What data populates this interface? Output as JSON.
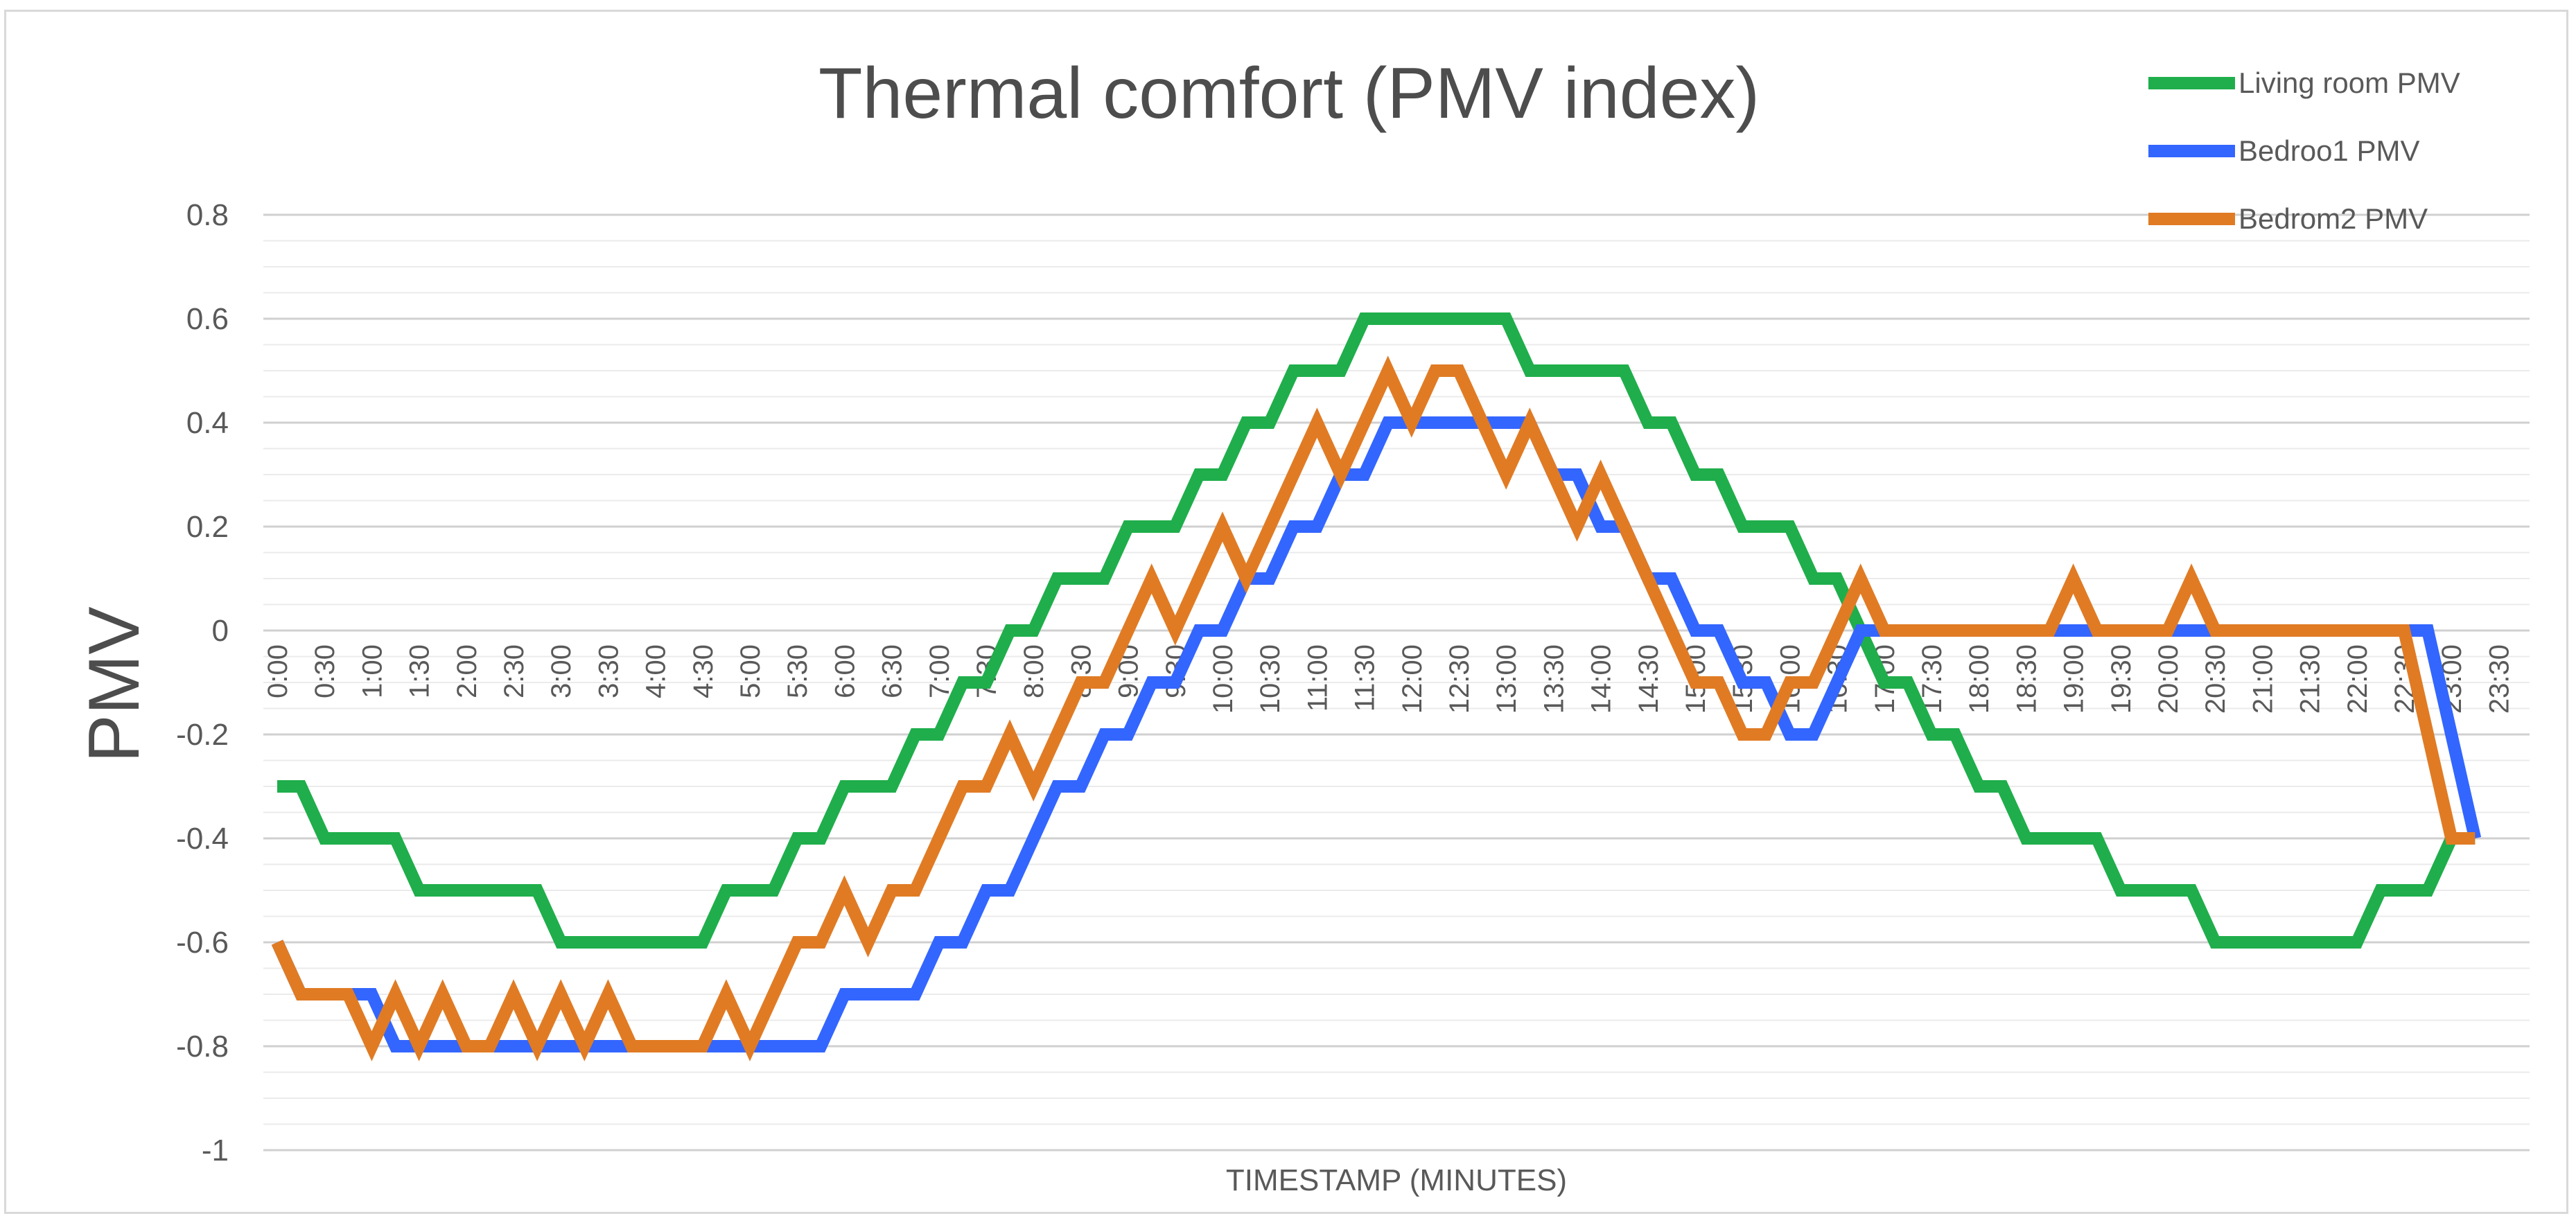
{
  "chart_data": {
    "type": "line",
    "title": "Thermal comfort (PMV index)",
    "xlabel": "TIMESTAMP (MINUTES)",
    "ylabel": "PMV",
    "ylim": [
      -1,
      0.8
    ],
    "y_ticks": [
      "0.8",
      "0.6",
      "0.4",
      "0.2",
      "0",
      "-0.2",
      "-0.4",
      "-0.6",
      "-0.8",
      "-1"
    ],
    "y_tick_values": [
      0.8,
      0.6,
      0.4,
      0.2,
      0,
      -0.2,
      -0.4,
      -0.6,
      -0.8,
      -1
    ],
    "grid": true,
    "legend_position": "top-right",
    "categories": [
      "0:00",
      "0:30",
      "1:00",
      "1:30",
      "2:00",
      "2:30",
      "3:00",
      "3:30",
      "4:00",
      "4:30",
      "5:00",
      "5:30",
      "6:00",
      "6:30",
      "7:00",
      "7:30",
      "8:00",
      "8:30",
      "9:00",
      "9:30",
      "10:00",
      "10:30",
      "11:00",
      "11:30",
      "12:00",
      "12:30",
      "13:00",
      "13:30",
      "14:00",
      "14:30",
      "15:00",
      "15:30",
      "16:00",
      "16:30",
      "17:00",
      "17:30",
      "18:00",
      "18:30",
      "19:00",
      "19:30",
      "20:00",
      "20:30",
      "21:00",
      "21:30",
      "22:00",
      "22:30",
      "23:00",
      "23:30"
    ],
    "series": [
      {
        "name": "Living room PMV",
        "color": "#1fae4b",
        "points": [
          [
            0,
            -0.3
          ],
          [
            0.25,
            -0.3
          ],
          [
            0.5,
            -0.4
          ],
          [
            1.25,
            -0.4
          ],
          [
            1.5,
            -0.5
          ],
          [
            2.75,
            -0.5
          ],
          [
            3,
            -0.6
          ],
          [
            4.5,
            -0.6
          ],
          [
            4.75,
            -0.5
          ],
          [
            5.25,
            -0.5
          ],
          [
            5.5,
            -0.4
          ],
          [
            5.75,
            -0.4
          ],
          [
            6,
            -0.3
          ],
          [
            6.5,
            -0.3
          ],
          [
            6.75,
            -0.2
          ],
          [
            7,
            -0.2
          ],
          [
            7.25,
            -0.1
          ],
          [
            7.5,
            -0.1
          ],
          [
            7.75,
            0
          ],
          [
            8,
            0
          ],
          [
            8.25,
            0.1
          ],
          [
            8.75,
            0.1
          ],
          [
            9,
            0.2
          ],
          [
            9.5,
            0.2
          ],
          [
            9.75,
            0.3
          ],
          [
            10,
            0.3
          ],
          [
            10.25,
            0.4
          ],
          [
            10.5,
            0.4
          ],
          [
            10.75,
            0.5
          ],
          [
            11.25,
            0.5
          ],
          [
            11.5,
            0.6
          ],
          [
            13,
            0.6
          ],
          [
            13.25,
            0.5
          ],
          [
            14.25,
            0.5
          ],
          [
            14.5,
            0.4
          ],
          [
            14.75,
            0.4
          ],
          [
            15,
            0.3
          ],
          [
            15.25,
            0.3
          ],
          [
            15.5,
            0.2
          ],
          [
            16,
            0.2
          ],
          [
            16.25,
            0.1
          ],
          [
            16.5,
            0.1
          ],
          [
            16.75,
            0
          ],
          [
            17,
            -0.1
          ],
          [
            17.25,
            -0.1
          ],
          [
            17.5,
            -0.2
          ],
          [
            17.75,
            -0.2
          ],
          [
            18,
            -0.3
          ],
          [
            18.25,
            -0.3
          ],
          [
            18.5,
            -0.4
          ],
          [
            19.25,
            -0.4
          ],
          [
            19.5,
            -0.5
          ],
          [
            20.25,
            -0.5
          ],
          [
            20.5,
            -0.6
          ],
          [
            22,
            -0.6
          ],
          [
            22.25,
            -0.5
          ],
          [
            22.75,
            -0.5
          ],
          [
            23,
            -0.4
          ],
          [
            23.25,
            -0.4
          ]
        ]
      },
      {
        "name": "Bedroo1 PMV",
        "color": "#3366ff",
        "points": [
          [
            0,
            -0.6
          ],
          [
            0.25,
            -0.7
          ],
          [
            1,
            -0.7
          ],
          [
            1.25,
            -0.8
          ],
          [
            5.75,
            -0.8
          ],
          [
            6,
            -0.7
          ],
          [
            6.75,
            -0.7
          ],
          [
            7,
            -0.6
          ],
          [
            7.25,
            -0.6
          ],
          [
            7.5,
            -0.5
          ],
          [
            7.75,
            -0.5
          ],
          [
            8.25,
            -0.3
          ],
          [
            8.5,
            -0.3
          ],
          [
            8.75,
            -0.2
          ],
          [
            9,
            -0.2
          ],
          [
            9.25,
            -0.1
          ],
          [
            9.5,
            -0.1
          ],
          [
            9.75,
            0
          ],
          [
            10,
            0
          ],
          [
            10.25,
            0.1
          ],
          [
            10.5,
            0.1
          ],
          [
            10.75,
            0.2
          ],
          [
            11,
            0.2
          ],
          [
            11.25,
            0.3
          ],
          [
            11.5,
            0.3
          ],
          [
            11.75,
            0.4
          ],
          [
            13.25,
            0.4
          ],
          [
            13.5,
            0.3
          ],
          [
            13.75,
            0.3
          ],
          [
            14,
            0.2
          ],
          [
            14.25,
            0.2
          ],
          [
            14.5,
            0.1
          ],
          [
            14.75,
            0.1
          ],
          [
            15,
            0
          ],
          [
            15.25,
            0
          ],
          [
            15.5,
            -0.1
          ],
          [
            15.75,
            -0.1
          ],
          [
            16,
            -0.2
          ],
          [
            16.25,
            -0.2
          ],
          [
            16.5,
            -0.1
          ],
          [
            16.75,
            0
          ],
          [
            22.75,
            0
          ],
          [
            23.25,
            -0.4
          ]
        ]
      },
      {
        "name": "Bedrom2 PMV",
        "color": "#e07b24",
        "points": [
          [
            0,
            -0.6
          ],
          [
            0.25,
            -0.7
          ],
          [
            0.75,
            -0.7
          ],
          [
            1,
            -0.8
          ],
          [
            1.25,
            -0.7
          ],
          [
            1.5,
            -0.8
          ],
          [
            1.75,
            -0.7
          ],
          [
            2,
            -0.8
          ],
          [
            2.25,
            -0.8
          ],
          [
            2.5,
            -0.7
          ],
          [
            2.75,
            -0.8
          ],
          [
            3,
            -0.7
          ],
          [
            3.25,
            -0.8
          ],
          [
            3.5,
            -0.7
          ],
          [
            3.75,
            -0.8
          ],
          [
            4.5,
            -0.8
          ],
          [
            4.75,
            -0.7
          ],
          [
            5,
            -0.8
          ],
          [
            5.5,
            -0.6
          ],
          [
            5.75,
            -0.6
          ],
          [
            6,
            -0.5
          ],
          [
            6.25,
            -0.6
          ],
          [
            6.5,
            -0.5
          ],
          [
            6.75,
            -0.5
          ],
          [
            7.25,
            -0.3
          ],
          [
            7.5,
            -0.3
          ],
          [
            7.75,
            -0.2
          ],
          [
            8,
            -0.3
          ],
          [
            8.5,
            -0.1
          ],
          [
            8.75,
            -0.1
          ],
          [
            9.25,
            0.1
          ],
          [
            9.5,
            0
          ],
          [
            10,
            0.2
          ],
          [
            10.25,
            0.1
          ],
          [
            11,
            0.4
          ],
          [
            11.25,
            0.3
          ],
          [
            11.75,
            0.5
          ],
          [
            12,
            0.4
          ],
          [
            12.25,
            0.5
          ],
          [
            12.5,
            0.5
          ],
          [
            13,
            0.3
          ],
          [
            13.25,
            0.4
          ],
          [
            13.75,
            0.2
          ],
          [
            14,
            0.3
          ],
          [
            14.75,
            0
          ],
          [
            15,
            -0.1
          ],
          [
            15.25,
            -0.1
          ],
          [
            15.5,
            -0.2
          ],
          [
            15.75,
            -0.2
          ],
          [
            16,
            -0.1
          ],
          [
            16.25,
            -0.1
          ],
          [
            16.75,
            0.1
          ],
          [
            17,
            0
          ],
          [
            18.75,
            0
          ],
          [
            19,
            0.1
          ],
          [
            19.25,
            0
          ],
          [
            20,
            0
          ],
          [
            20.25,
            0.1
          ],
          [
            20.5,
            0
          ],
          [
            22.5,
            0
          ],
          [
            23,
            -0.4
          ],
          [
            23.25,
            -0.4
          ]
        ]
      }
    ]
  }
}
